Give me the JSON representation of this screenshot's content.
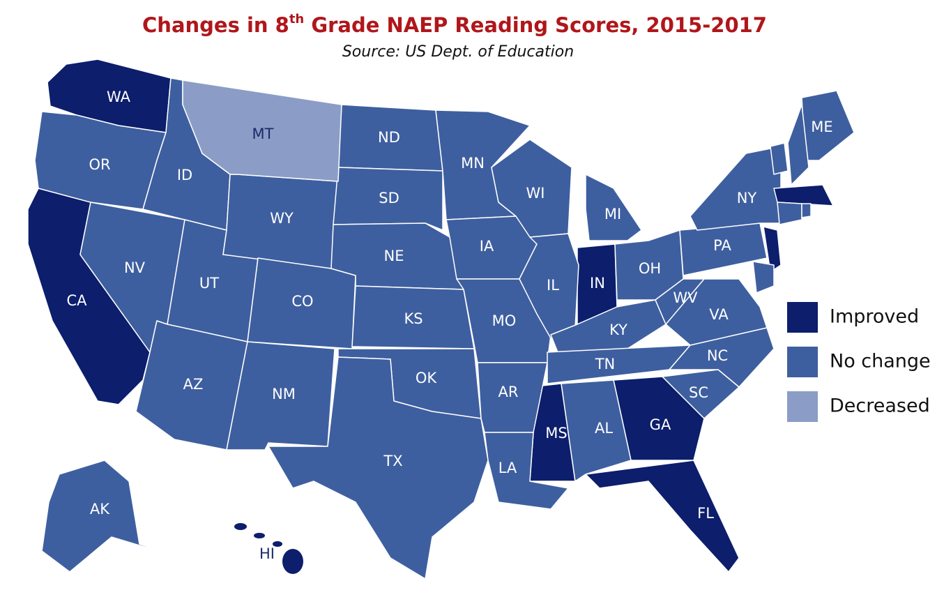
{
  "title": {
    "before": "Changes in 8",
    "sup": "th",
    "after": " Grade NAEP Reading Scores, 2015-2017"
  },
  "subtitle": "Source: US Dept. of Education",
  "legend": [
    {
      "label": "Improved",
      "color": "#0c1e6c",
      "states": [
        "WA",
        "CA",
        "IN",
        "MS",
        "GA",
        "FL",
        "HI"
      ]
    },
    {
      "label": "No change",
      "color": "#3e5f9f",
      "states": [
        "OR",
        "ID",
        "NV",
        "UT",
        "AZ",
        "WY",
        "CO",
        "NM",
        "ND",
        "SD",
        "NE",
        "KS",
        "OK",
        "TX",
        "MN",
        "IA",
        "MO",
        "AR",
        "LA",
        "WI",
        "IL",
        "MI",
        "OH",
        "KY",
        "TN",
        "AL",
        "WV",
        "VA",
        "NC",
        "SC",
        "PA",
        "NY",
        "ME",
        "AK"
      ]
    },
    {
      "label": "Decreased",
      "color": "#8b9dc6",
      "states": [
        "MT"
      ]
    }
  ]
}
